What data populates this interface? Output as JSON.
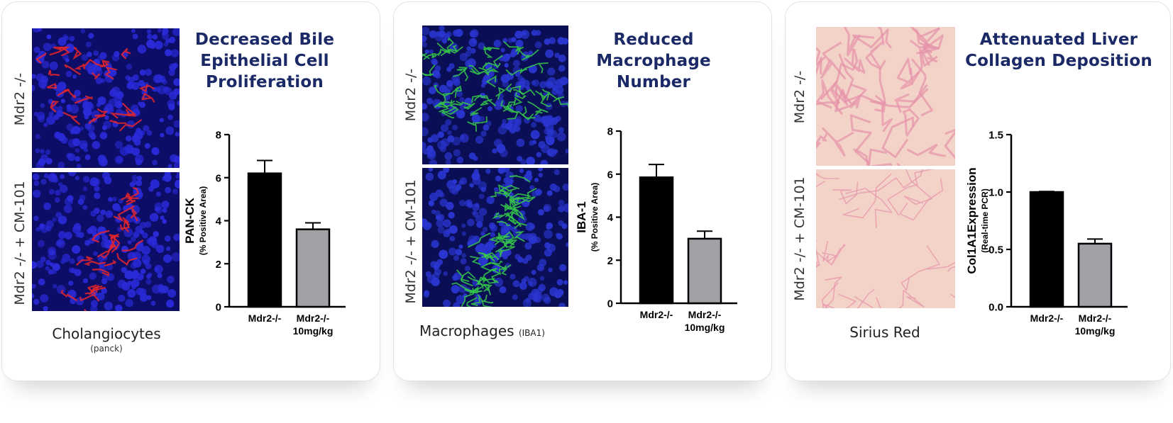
{
  "panels": [
    {
      "title_lines": [
        "Decreased Bile",
        "Epithelial Cell",
        "Proliferation"
      ],
      "row_labels": [
        "Mdr2 -/-",
        "Mdr2 -/- + CM-101"
      ],
      "caption": "Cholangiocytes",
      "caption_sub": "(panck)",
      "stain_colors": {
        "background": "#0c0d66",
        "nuclei": "#2a2ad8",
        "signal": "#e8262a"
      }
    },
    {
      "title_lines": [
        "Reduced",
        "Macrophage",
        "Number"
      ],
      "row_labels": [
        "Mdr2 -/-",
        "Mdr2 -/- + CM-101"
      ],
      "caption": "Macrophages",
      "caption_small": "(IBA1)",
      "stain_colors": {
        "background": "#0a0f55",
        "nuclei": "#2a35d0",
        "signal": "#35c84a"
      }
    },
    {
      "title_lines": [
        "Attenuated Liver",
        "Collagen Deposition"
      ],
      "row_labels": [
        "Mdr2 -/-",
        "Mdr2 -/- + CM-101"
      ],
      "caption": "Sirius Red",
      "stain_colors": {
        "background": "#f3d3c8",
        "signal": "#e592aa"
      }
    }
  ],
  "chart_data": [
    {
      "type": "bar",
      "categories": [
        [
          "Mdr2-/-"
        ],
        [
          "Mdr2-/-",
          "10mg/kg"
        ]
      ],
      "values": [
        6.2,
        3.6
      ],
      "errors": [
        0.6,
        0.3
      ],
      "ylabel": "PAN-CK",
      "ylabel_sub": "(% Positive Area)",
      "ylim": [
        0,
        8
      ],
      "yticks": [
        "0",
        "2",
        "4",
        "6",
        "8"
      ],
      "bar_colors": [
        "#000000",
        "#a0a0a5"
      ]
    },
    {
      "type": "bar",
      "categories": [
        [
          "Mdr2-/-"
        ],
        [
          "Mdr2-/-",
          "10mg/kg"
        ]
      ],
      "values": [
        5.85,
        3.0
      ],
      "errors": [
        0.6,
        0.35
      ],
      "ylabel": "IBA-1",
      "ylabel_sub": "(% Positive Area)",
      "ylim": [
        0,
        8
      ],
      "yticks": [
        "0",
        "2",
        "4",
        "6",
        "8"
      ],
      "bar_colors": [
        "#000000",
        "#a0a0a5"
      ]
    },
    {
      "type": "bar",
      "categories": [
        [
          "Mdr2-/-"
        ],
        [
          "Mdr2-/-",
          "10mg/kg"
        ]
      ],
      "values": [
        1.0,
        0.55
      ],
      "errors": [
        0.005,
        0.04
      ],
      "ylabel": "Col1A1Expression",
      "ylabel_sub": "(Real-time PCR)",
      "ylim": [
        0,
        1.5
      ],
      "yticks": [
        "0.0",
        "0.5",
        "1.0",
        "1.5"
      ],
      "bar_colors": [
        "#000000",
        "#a0a0a5"
      ]
    }
  ]
}
